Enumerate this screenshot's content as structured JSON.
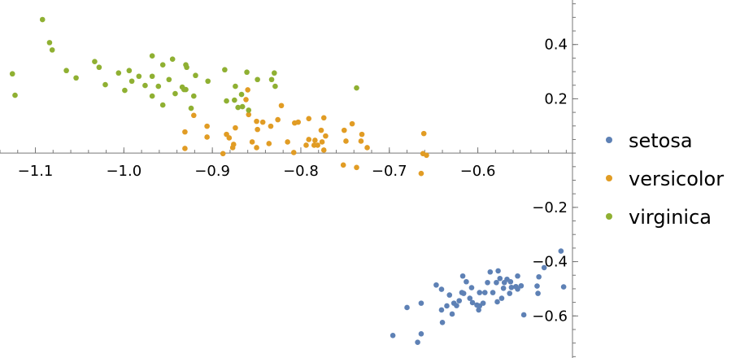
{
  "chart_data": {
    "type": "scatter",
    "title": "",
    "xlabel": "",
    "ylabel": "",
    "xlim": [
      -1.14,
      -0.493
    ],
    "ylim": [
      -0.755,
      0.564
    ],
    "x_ticks": [
      -1.1,
      -1.0,
      -0.9,
      -0.8,
      -0.7,
      -0.6
    ],
    "x_tick_labels": [
      "−1.1",
      "−1.0",
      "−0.9",
      "−0.8",
      "−0.7",
      "−0.6"
    ],
    "y_ticks": [
      0.4,
      0.2,
      -0.2,
      -0.4,
      -0.6
    ],
    "y_tick_labels": [
      "0.4",
      "0.2",
      "−0.2",
      "−0.4",
      "−0.6"
    ],
    "grid": false,
    "legend_position": "right",
    "series": [
      {
        "name": "setosa",
        "color": "#5E81B5",
        "points": [
          [
            -0.506,
            -0.361
          ],
          [
            -0.525,
            -0.422
          ],
          [
            -0.531,
            -0.456
          ],
          [
            -0.503,
            -0.493
          ],
          [
            -0.533,
            -0.49
          ],
          [
            -0.548,
            -0.596
          ],
          [
            -0.696,
            -0.672
          ],
          [
            -0.668,
            -0.697
          ],
          [
            -0.664,
            -0.666
          ],
          [
            -0.68,
            -0.569
          ],
          [
            -0.664,
            -0.553
          ],
          [
            -0.647,
            -0.486
          ],
          [
            -0.641,
            -0.502
          ],
          [
            -0.632,
            -0.523
          ],
          [
            -0.635,
            -0.563
          ],
          [
            -0.641,
            -0.578
          ],
          [
            -0.64,
            -0.624
          ],
          [
            -0.629,
            -0.593
          ],
          [
            -0.627,
            -0.553
          ],
          [
            -0.624,
            -0.562
          ],
          [
            -0.621,
            -0.544
          ],
          [
            -0.617,
            -0.453
          ],
          [
            -0.613,
            -0.474
          ],
          [
            -0.616,
            -0.517
          ],
          [
            -0.609,
            -0.535
          ],
          [
            -0.607,
            -0.496
          ],
          [
            -0.606,
            -0.551
          ],
          [
            -0.601,
            -0.56
          ],
          [
            -0.598,
            -0.514
          ],
          [
            -0.594,
            -0.553
          ],
          [
            -0.589,
            -0.477
          ],
          [
            -0.586,
            -0.438
          ],
          [
            -0.583,
            -0.514
          ],
          [
            -0.579,
            -0.477
          ],
          [
            -0.578,
            -0.548
          ],
          [
            -0.598,
            -0.563
          ],
          [
            -0.577,
            -0.434
          ],
          [
            -0.575,
            -0.462
          ],
          [
            -0.57,
            -0.477
          ],
          [
            -0.571,
            -0.498
          ],
          [
            -0.573,
            -0.535
          ],
          [
            -0.567,
            -0.465
          ],
          [
            -0.563,
            -0.474
          ],
          [
            -0.555,
            -0.501
          ],
          [
            -0.557,
            -0.492
          ],
          [
            -0.562,
            -0.495
          ],
          [
            -0.564,
            -0.517
          ],
          [
            -0.555,
            -0.453
          ],
          [
            -0.551,
            -0.489
          ],
          [
            -0.532,
            -0.517
          ],
          [
            -0.599,
            -0.578
          ],
          [
            -0.592,
            -0.514
          ],
          [
            -0.618,
            -0.514
          ]
        ]
      },
      {
        "name": "versicolor",
        "color": "#E19C24",
        "points": [
          [
            -0.86,
            0.233
          ],
          [
            -0.862,
            0.197
          ],
          [
            -0.921,
            0.139
          ],
          [
            -0.822,
            0.175
          ],
          [
            -0.859,
            0.142
          ],
          [
            -0.85,
            0.117
          ],
          [
            -0.843,
            0.114
          ],
          [
            -0.834,
            0.099
          ],
          [
            -0.826,
            0.123
          ],
          [
            -0.807,
            0.111
          ],
          [
            -0.803,
            0.114
          ],
          [
            -0.791,
            0.127
          ],
          [
            -0.774,
            0.13
          ],
          [
            -0.777,
            0.084
          ],
          [
            -0.772,
            0.063
          ],
          [
            -0.784,
            0.047
          ],
          [
            -0.776,
            0.041
          ],
          [
            -0.785,
            0.029
          ],
          [
            -0.781,
            0.029
          ],
          [
            -0.794,
            0.029
          ],
          [
            -0.791,
            0.05
          ],
          [
            -0.774,
            0.011
          ],
          [
            -0.815,
            0.041
          ],
          [
            -0.808,
            0.002
          ],
          [
            -0.836,
            0.035
          ],
          [
            -0.85,
            0.02
          ],
          [
            -0.855,
            0.041
          ],
          [
            -0.849,
            0.087
          ],
          [
            -0.874,
            0.093
          ],
          [
            -0.884,
            0.069
          ],
          [
            -0.881,
            0.056
          ],
          [
            -0.876,
            0.032
          ],
          [
            -0.877,
            0.02
          ],
          [
            -0.888,
            -0.002
          ],
          [
            -0.906,
            0.099
          ],
          [
            -0.906,
            0.059
          ],
          [
            -0.931,
            0.078
          ],
          [
            -0.931,
            0.017
          ],
          [
            -0.751,
            0.084
          ],
          [
            -0.742,
            0.108
          ],
          [
            -0.749,
            0.044
          ],
          [
            -0.731,
            0.069
          ],
          [
            -0.732,
            0.044
          ],
          [
            -0.725,
            0.02
          ],
          [
            -0.661,
            0.072
          ],
          [
            -0.662,
            -0.002
          ],
          [
            -0.658,
            -0.008
          ],
          [
            -0.752,
            -0.044
          ],
          [
            -0.737,
            -0.053
          ],
          [
            -0.664,
            -0.075
          ]
        ]
      },
      {
        "name": "virginica",
        "color": "#8FB032",
        "points": [
          [
            -1.092,
            0.492
          ],
          [
            -1.084,
            0.407
          ],
          [
            -1.081,
            0.38
          ],
          [
            -1.126,
            0.292
          ],
          [
            -1.123,
            0.213
          ],
          [
            -1.065,
            0.304
          ],
          [
            -1.054,
            0.277
          ],
          [
            -1.033,
            0.337
          ],
          [
            -1.028,
            0.316
          ],
          [
            -1.021,
            0.252
          ],
          [
            -1.006,
            0.295
          ],
          [
            -0.999,
            0.231
          ],
          [
            -0.994,
            0.304
          ],
          [
            -0.991,
            0.265
          ],
          [
            -0.983,
            0.283
          ],
          [
            -0.976,
            0.249
          ],
          [
            -0.968,
            0.358
          ],
          [
            -0.968,
            0.283
          ],
          [
            -0.968,
            0.21
          ],
          [
            -0.961,
            0.246
          ],
          [
            -0.956,
            0.325
          ],
          [
            -0.956,
            0.177
          ],
          [
            -0.949,
            0.271
          ],
          [
            -0.945,
            0.346
          ],
          [
            -0.942,
            0.219
          ],
          [
            -0.934,
            0.243
          ],
          [
            -0.932,
            0.234
          ],
          [
            -0.93,
            0.234
          ],
          [
            -0.93,
            0.325
          ],
          [
            -0.929,
            0.316
          ],
          [
            -0.924,
            0.165
          ],
          [
            -0.921,
            0.21
          ],
          [
            -0.919,
            0.286
          ],
          [
            -0.905,
            0.265
          ],
          [
            -0.886,
            0.307
          ],
          [
            -0.884,
            0.192
          ],
          [
            -0.875,
            0.195
          ],
          [
            -0.874,
            0.246
          ],
          [
            -0.871,
            0.168
          ],
          [
            -0.867,
            0.216
          ],
          [
            -0.866,
            0.171
          ],
          [
            -0.861,
            0.298
          ],
          [
            -0.859,
            0.158
          ],
          [
            -0.849,
            0.271
          ],
          [
            -0.833,
            0.271
          ],
          [
            -0.83,
            0.295
          ],
          [
            -0.829,
            0.246
          ],
          [
            -0.737,
            0.24
          ]
        ]
      }
    ]
  }
}
